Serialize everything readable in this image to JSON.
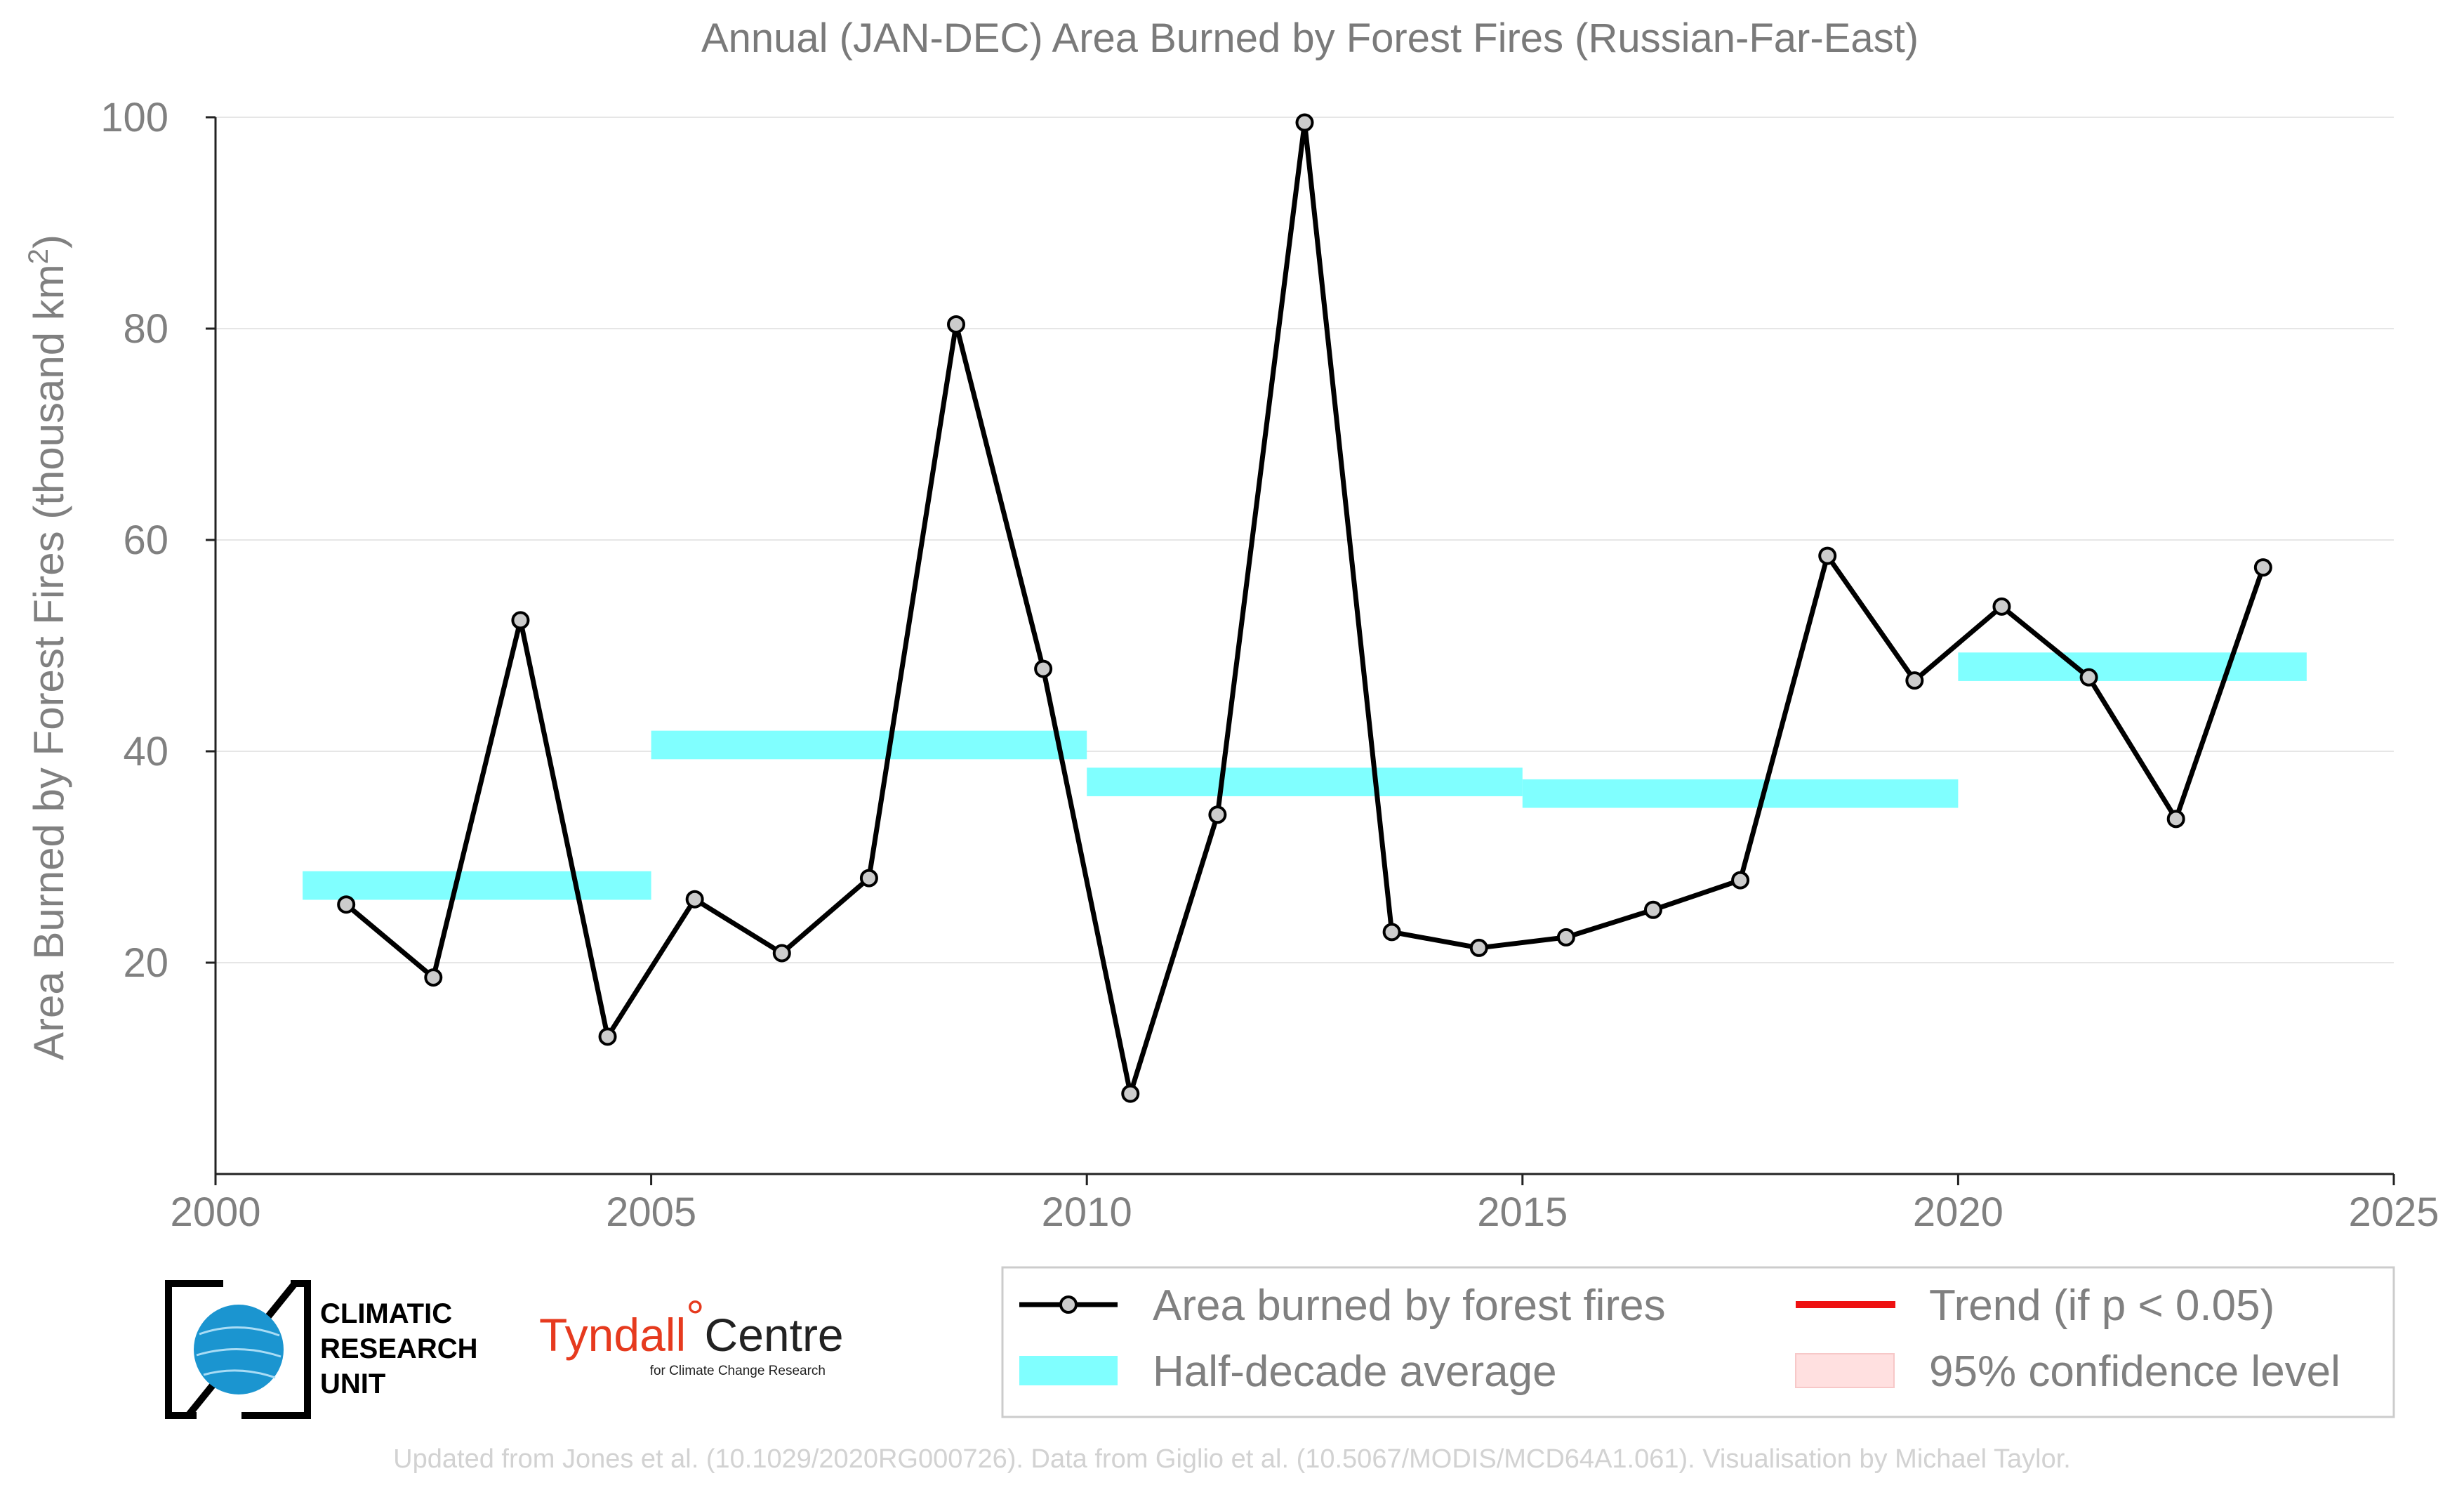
{
  "chart_data": {
    "type": "line",
    "title": "Annual (JAN-DEC) Area Burned by Forest Fires (Russian-Far-East)",
    "ylabel_main": "Area Burned by Forest Fires (thousand km",
    "ylabel_sup": "2",
    "ylabel_close": ")",
    "xlim": [
      2000,
      2025
    ],
    "ylim": [
      0,
      100
    ],
    "x_ticks": [
      2000,
      2005,
      2010,
      2015,
      2020,
      2025
    ],
    "y_ticks": [
      20,
      40,
      60,
      80,
      100
    ],
    "grid": true,
    "series": [
      {
        "name": "Area burned by forest fires",
        "color": "#000000",
        "marker_fill": "#cccccc",
        "x": [
          2001.5,
          2002.5,
          2003.5,
          2004.5,
          2005.5,
          2006.5,
          2007.5,
          2008.5,
          2009.5,
          2010.5,
          2011.5,
          2012.5,
          2013.5,
          2014.5,
          2015.5,
          2016.5,
          2017.5,
          2018.5,
          2019.5,
          2020.5,
          2021.5,
          2022.5,
          2023.5
        ],
        "values": [
          25.5,
          18.6,
          52.4,
          13.0,
          26.0,
          20.9,
          28.0,
          80.4,
          47.8,
          7.6,
          34.0,
          99.5,
          22.9,
          21.4,
          22.4,
          25.0,
          27.8,
          58.5,
          46.7,
          53.7,
          47.0,
          33.6,
          57.4
        ]
      }
    ],
    "half_decade_average": {
      "name": "Half-decade average",
      "color": "#80ffff",
      "segments": [
        {
          "x_start": 2001,
          "x_end": 2005,
          "value": 27.3
        },
        {
          "x_start": 2005,
          "x_end": 2010,
          "value": 40.6
        },
        {
          "x_start": 2010,
          "x_end": 2015,
          "value": 37.1
        },
        {
          "x_start": 2015,
          "x_end": 2020,
          "value": 36.0
        },
        {
          "x_start": 2020,
          "x_end": 2024,
          "value": 48.0
        }
      ]
    },
    "legend": {
      "placement": "bottom-right",
      "entries": [
        {
          "label": "Area burned by forest fires",
          "symbol": "line-marker",
          "color": "#000000"
        },
        {
          "label": "Trend (if p < 0.05)",
          "symbol": "line",
          "color": "#ee1111"
        },
        {
          "label": "Half-decade average",
          "symbol": "band",
          "color": "#80ffff"
        },
        {
          "label": "95% confidence level",
          "symbol": "patch",
          "color": "#ffe0e0"
        }
      ]
    }
  },
  "logos": {
    "cru": [
      "CLIMATIC",
      "RESEARCH",
      "UNIT"
    ],
    "tyndall_name": "Tyndall",
    "tyndall_degree": "°",
    "tyndall_centre": "Centre",
    "tyndall_sub": "for Climate Change Research"
  },
  "footer": "Updated from Jones et al. (10.1029/2020RG000726). Data from Giglio et al. (10.5067/MODIS/MCD64A1.061). Visualisation by Michael Taylor."
}
